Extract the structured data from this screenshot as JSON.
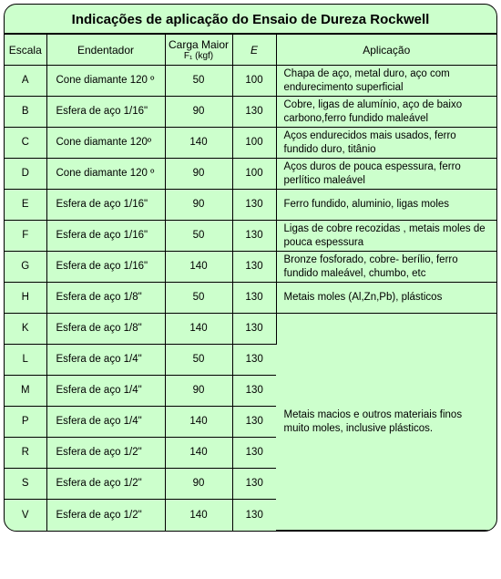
{
  "colors": {
    "background": "#ccffcc",
    "border": "#000000",
    "text": "#000000"
  },
  "title": "Indicações de aplicação do Ensaio de Dureza Rockwell",
  "columns": {
    "escala": "Escala",
    "endentador": "Endentador",
    "carga_line1": "Carga Maior",
    "carga_line2": "F₁ (kgf)",
    "e": "E",
    "aplicacao": "Aplicação"
  },
  "rows": [
    {
      "escala": "A",
      "endentador": "Cone diamante 120 º",
      "carga": "50",
      "e": "100",
      "aplicacao": "Chapa de aço, metal duro, aço com endurecimento superficial"
    },
    {
      "escala": "B",
      "endentador": "Esfera de aço 1/16\"",
      "carga": "90",
      "e": "130",
      "aplicacao": "Cobre, ligas de alumínio, aço de baixo carbono,ferro fundido maleável"
    },
    {
      "escala": "C",
      "endentador": "Cone diamante 120º",
      "carga": "140",
      "e": "100",
      "aplicacao": "Aços endurecidos mais usados, ferro fundido duro, titânio"
    },
    {
      "escala": "D",
      "endentador": "Cone diamante 120 º",
      "carga": "90",
      "e": "100",
      "aplicacao": "Aços duros de pouca espessura, ferro perlítico maleável"
    },
    {
      "escala": "E",
      "endentador": "Esfera de aço 1/16\"",
      "carga": "90",
      "e": "130",
      "aplicacao": "Ferro fundido, aluminio, ligas moles"
    },
    {
      "escala": "F",
      "endentador": "Esfera de aço 1/16\"",
      "carga": "50",
      "e": "130",
      "aplicacao": "Ligas de cobre recozidas , metais moles de pouca espessura"
    },
    {
      "escala": "G",
      "endentador": "Esfera de aço 1/16\"",
      "carga": "140",
      "e": "130",
      "aplicacao": "Bronze fosforado, cobre- berílio, ferro fundido maleável, chumbo, etc"
    },
    {
      "escala": "H",
      "endentador": "Esfera de aço 1/8\"",
      "carga": "50",
      "e": "130",
      "aplicacao": "Metais  moles (Al,Zn,Pb), plásticos"
    },
    {
      "escala": "K",
      "endentador": "Esfera de aço 1/8\"",
      "carga": "140",
      "e": "130"
    },
    {
      "escala": "L",
      "endentador": "Esfera de aço 1/4\"",
      "carga": "50",
      "e": "130"
    },
    {
      "escala": "M",
      "endentador": "Esfera de aço 1/4\"",
      "carga": "90",
      "e": "130"
    },
    {
      "escala": "P",
      "endentador": "Esfera de aço 1/4\"",
      "carga": "140",
      "e": "130"
    },
    {
      "escala": "R",
      "endentador": "Esfera de aço 1/2\"",
      "carga": "140",
      "e": "130"
    },
    {
      "escala": "S",
      "endentador": "Esfera de aço 1/2\"",
      "carga": "90",
      "e": "130"
    },
    {
      "escala": "V",
      "endentador": "Esfera de aço 1/2\"",
      "carga": "140",
      "e": "130"
    }
  ],
  "merged_application": "Metais macios e outros materiais finos muito moles, inclusive plásticos.",
  "merged_start_index": 8,
  "merged_span": 7
}
